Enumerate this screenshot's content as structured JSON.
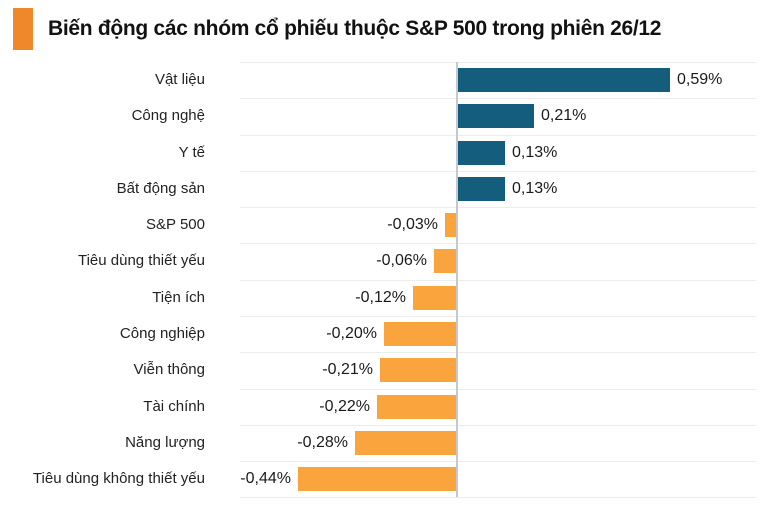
{
  "header": {
    "title": "Biến động các nhóm cổ phiếu thuộc S&P 500 trong phiên 26/12",
    "marker_color": "#ef8829"
  },
  "chart_data": {
    "type": "bar",
    "orientation": "horizontal",
    "title": "Biến động các nhóm cổ phiếu thuộc S&P 500 trong phiên 26/12",
    "categories": [
      "Vật liệu",
      "Công nghệ",
      "Y tế",
      "Bất động sản",
      "S&P 500",
      "Tiêu dùng thiết yếu",
      "Tiện ích",
      "Công nghiệp",
      "Viễn thông",
      "Tài chính",
      "Năng lượng",
      "Tiêu dùng không thiết yếu"
    ],
    "values": [
      0.59,
      0.21,
      0.13,
      0.13,
      -0.03,
      -0.06,
      -0.12,
      -0.2,
      -0.21,
      -0.22,
      -0.28,
      -0.44
    ],
    "value_labels": [
      "0,59%",
      "0,21%",
      "0,13%",
      "0,13%",
      "-0,03%",
      "-0,06%",
      "-0,12%",
      "-0,20%",
      "-0,21%",
      "-0,22%",
      "-0,28%",
      "-0,44%"
    ],
    "unit": "%",
    "decimal_separator": ",",
    "xlabel": "",
    "ylabel": "",
    "xlim": [
      -0.6,
      0.84
    ],
    "grid": "row-separators-only",
    "legend": "none",
    "value_label_position": "outside-end",
    "colors": {
      "positive": "#155d7d",
      "negative": "#f9a43c",
      "axis_line": "#c3c9ce",
      "gridline": "#ececec",
      "text": "#1a1a1a"
    }
  }
}
